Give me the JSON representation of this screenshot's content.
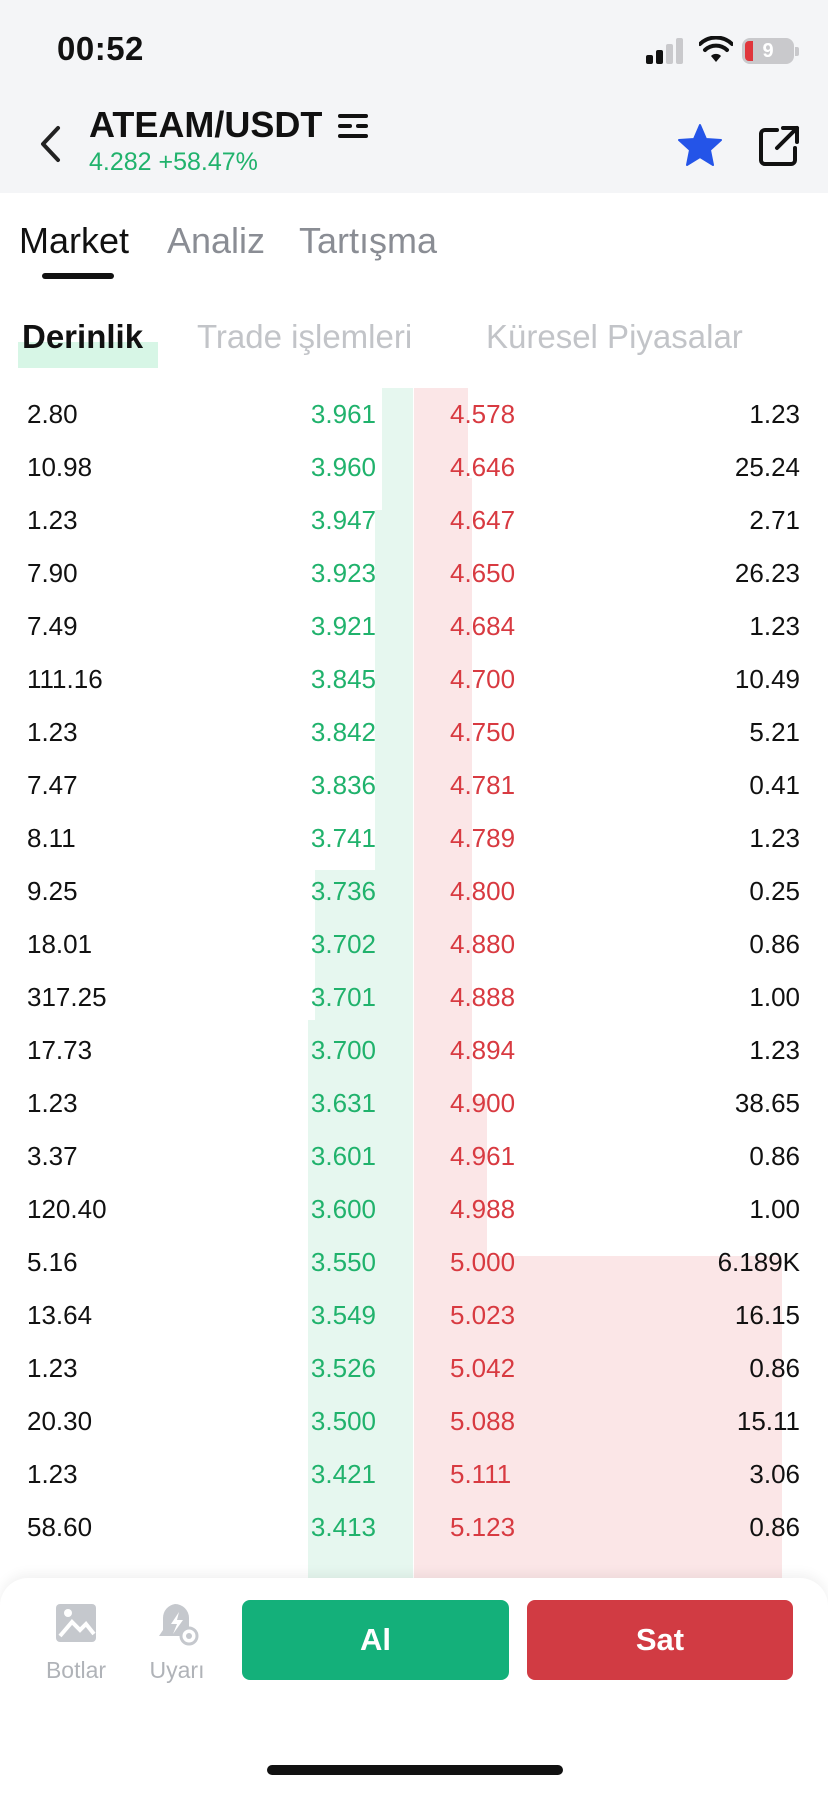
{
  "status_bar": {
    "time": "00:52",
    "battery": "9"
  },
  "header": {
    "pair": "ATEAM/USDT",
    "price_change": "4.282 +58.47%"
  },
  "colors": {
    "bid": "#20b26c",
    "ask": "#d83a41",
    "buy": "#14b07a",
    "sell": "#d13b43",
    "star": "#2454e8"
  },
  "main_tabs": [
    {
      "label": "Market",
      "active": true
    },
    {
      "label": "Analiz",
      "active": false
    },
    {
      "label": "Tartışma",
      "active": false
    }
  ],
  "sub_tabs": [
    {
      "label": "Derinlik",
      "active": true
    },
    {
      "label": "Trade işlemleri",
      "active": false
    },
    {
      "label": "Küresel Piyasalar",
      "active": false
    }
  ],
  "order_book": {
    "rows": [
      {
        "bid_amount": "2.80",
        "bid_price": "3.961",
        "ask_price": "4.578",
        "ask_amount": "1.23"
      },
      {
        "bid_amount": "10.98",
        "bid_price": "3.960",
        "ask_price": "4.646",
        "ask_amount": "25.24"
      },
      {
        "bid_amount": "1.23",
        "bid_price": "3.947",
        "ask_price": "4.647",
        "ask_amount": "2.71"
      },
      {
        "bid_amount": "7.90",
        "bid_price": "3.923",
        "ask_price": "4.650",
        "ask_amount": "26.23"
      },
      {
        "bid_amount": "7.49",
        "bid_price": "3.921",
        "ask_price": "4.684",
        "ask_amount": "1.23"
      },
      {
        "bid_amount": "111.16",
        "bid_price": "3.845",
        "ask_price": "4.700",
        "ask_amount": "10.49"
      },
      {
        "bid_amount": "1.23",
        "bid_price": "3.842",
        "ask_price": "4.750",
        "ask_amount": "5.21"
      },
      {
        "bid_amount": "7.47",
        "bid_price": "3.836",
        "ask_price": "4.781",
        "ask_amount": "0.41"
      },
      {
        "bid_amount": "8.11",
        "bid_price": "3.741",
        "ask_price": "4.789",
        "ask_amount": "1.23"
      },
      {
        "bid_amount": "9.25",
        "bid_price": "3.736",
        "ask_price": "4.800",
        "ask_amount": "0.25"
      },
      {
        "bid_amount": "18.01",
        "bid_price": "3.702",
        "ask_price": "4.880",
        "ask_amount": "0.86"
      },
      {
        "bid_amount": "317.25",
        "bid_price": "3.701",
        "ask_price": "4.888",
        "ask_amount": "1.00"
      },
      {
        "bid_amount": "17.73",
        "bid_price": "3.700",
        "ask_price": "4.894",
        "ask_amount": "1.23"
      },
      {
        "bid_amount": "1.23",
        "bid_price": "3.631",
        "ask_price": "4.900",
        "ask_amount": "38.65"
      },
      {
        "bid_amount": "3.37",
        "bid_price": "3.601",
        "ask_price": "4.961",
        "ask_amount": "0.86"
      },
      {
        "bid_amount": "120.40",
        "bid_price": "3.600",
        "ask_price": "4.988",
        "ask_amount": "1.00"
      },
      {
        "bid_amount": "5.16",
        "bid_price": "3.550",
        "ask_price": "5.000",
        "ask_amount": "6.189K"
      },
      {
        "bid_amount": "13.64",
        "bid_price": "3.549",
        "ask_price": "5.023",
        "ask_amount": "16.15"
      },
      {
        "bid_amount": "1.23",
        "bid_price": "3.526",
        "ask_price": "5.042",
        "ask_amount": "0.86"
      },
      {
        "bid_amount": "20.30",
        "bid_price": "3.500",
        "ask_price": "5.088",
        "ask_amount": "15.11"
      },
      {
        "bid_amount": "1.23",
        "bid_price": "3.421",
        "ask_price": "5.111",
        "ask_amount": "3.06"
      },
      {
        "bid_amount": "58.60",
        "bid_price": "3.413",
        "ask_price": "5.123",
        "ask_amount": "0.86"
      }
    ]
  },
  "bottom_bar": {
    "bots_label": "Botlar",
    "alerts_label": "Uyarı",
    "buy_label": "Al",
    "sell_label": "Sat"
  }
}
